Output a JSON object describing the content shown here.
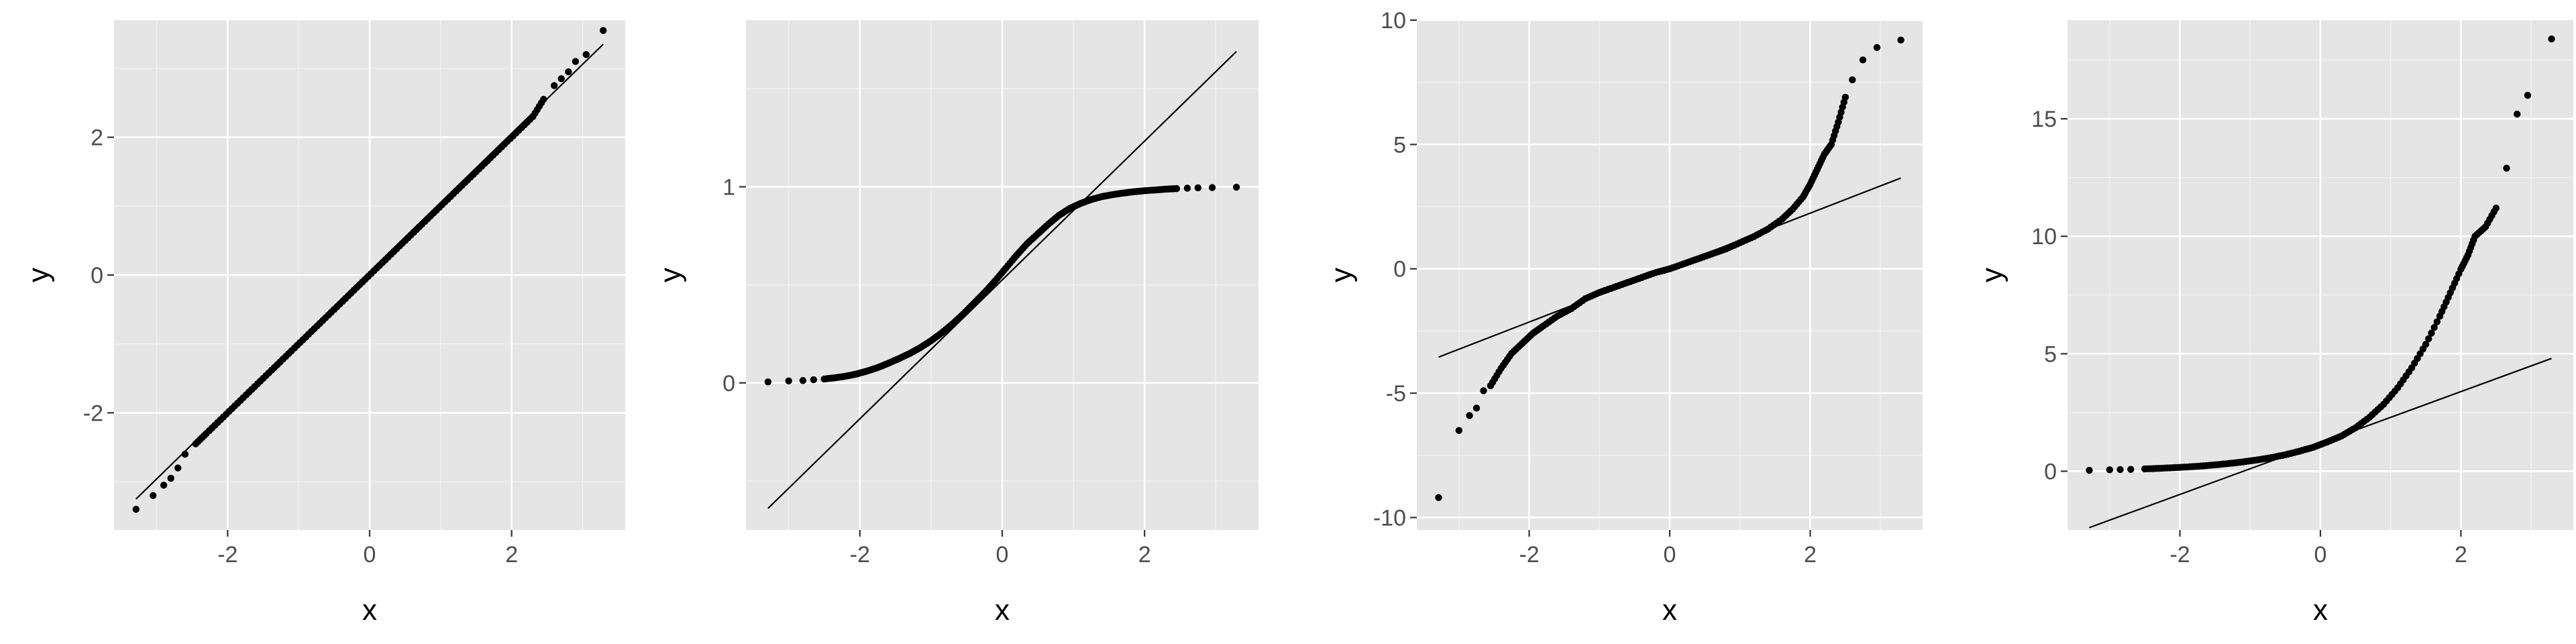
{
  "chart_data": [
    {
      "type": "scatter",
      "xlabel": "x",
      "ylabel": "y",
      "xlim": [
        -3.6,
        3.6
      ],
      "ylim": [
        -3.7,
        3.7
      ],
      "x_ticks": [
        -2,
        0,
        2
      ],
      "y_ticks": [
        -2,
        0,
        2
      ],
      "x_tick_labels": [
        "-2",
        "0",
        "2"
      ],
      "y_tick_labels": [
        "-2",
        "0",
        "2"
      ],
      "grid": true,
      "reference_line": {
        "x": [
          -3.29,
          3.29
        ],
        "y": [
          -3.25,
          3.35
        ]
      },
      "series": [
        {
          "x": [
            -3.29,
            -3.05,
            -2.9,
            -2.8,
            -2.7,
            -2.6,
            -2.45,
            -2.3,
            -2.1,
            -1.9,
            -1.7,
            -1.5,
            -1.3,
            -1.1,
            -0.9,
            -0.7,
            -0.5,
            -0.3,
            -0.1,
            0.1,
            0.3,
            0.5,
            0.7,
            0.9,
            1.1,
            1.3,
            1.5,
            1.7,
            1.9,
            2.1,
            2.3,
            2.45,
            2.6,
            2.7,
            2.8,
            2.9,
            3.05,
            3.29
          ],
          "y": [
            -3.4,
            -3.2,
            -3.05,
            -2.95,
            -2.8,
            -2.6,
            -2.45,
            -2.3,
            -2.1,
            -1.9,
            -1.7,
            -1.5,
            -1.3,
            -1.1,
            -0.9,
            -0.7,
            -0.5,
            -0.3,
            -0.1,
            0.1,
            0.3,
            0.5,
            0.7,
            0.9,
            1.1,
            1.3,
            1.5,
            1.7,
            1.9,
            2.1,
            2.3,
            2.55,
            2.75,
            2.85,
            2.95,
            3.1,
            3.2,
            3.55
          ]
        }
      ]
    },
    {
      "type": "scatter",
      "xlabel": "x",
      "ylabel": "y",
      "xlim": [
        -3.6,
        3.6
      ],
      "ylim": [
        -0.75,
        1.85
      ],
      "x_ticks": [
        -2,
        0,
        2
      ],
      "y_ticks": [
        0,
        1
      ],
      "x_tick_labels": [
        "-2",
        "0",
        "2"
      ],
      "y_tick_labels": [
        "0",
        "1"
      ],
      "grid": true,
      "reference_line": {
        "x": [
          -3.29,
          3.29
        ],
        "y": [
          -0.64,
          1.69
        ]
      },
      "series": [
        {
          "x": [
            -3.29,
            -3.0,
            -2.8,
            -2.65,
            -2.5,
            -2.35,
            -2.2,
            -2.05,
            -1.9,
            -1.75,
            -1.6,
            -1.45,
            -1.3,
            -1.15,
            -1.0,
            -0.85,
            -0.7,
            -0.55,
            -0.4,
            -0.25,
            -0.1,
            0.05,
            0.2,
            0.35,
            0.5,
            0.65,
            0.8,
            0.95,
            1.1,
            1.25,
            1.4,
            1.55,
            1.7,
            1.85,
            2.0,
            2.15,
            2.3,
            2.45,
            2.6,
            2.75,
            2.95,
            3.29
          ],
          "y": [
            0.005,
            0.01,
            0.012,
            0.016,
            0.02,
            0.026,
            0.034,
            0.045,
            0.06,
            0.078,
            0.1,
            0.124,
            0.15,
            0.18,
            0.215,
            0.255,
            0.3,
            0.35,
            0.405,
            0.46,
            0.52,
            0.585,
            0.65,
            0.71,
            0.76,
            0.81,
            0.855,
            0.89,
            0.915,
            0.935,
            0.95,
            0.96,
            0.968,
            0.975,
            0.98,
            0.984,
            0.988,
            0.991,
            0.993,
            0.995,
            0.996,
            0.998
          ]
        }
      ]
    },
    {
      "type": "scatter",
      "xlabel": "x",
      "ylabel": "y",
      "xlim": [
        -3.6,
        3.6
      ],
      "ylim": [
        -10.5,
        10.0
      ],
      "x_ticks": [
        -2,
        0,
        2
      ],
      "y_ticks": [
        -10,
        -5,
        0,
        5,
        10
      ],
      "x_tick_labels": [
        "-2",
        "0",
        "2"
      ],
      "y_tick_labels": [
        "-10",
        "-5",
        "0",
        "5",
        "10"
      ],
      "grid": true,
      "reference_line": {
        "x": [
          -3.29,
          3.29
        ],
        "y": [
          -3.55,
          3.65
        ]
      },
      "series": [
        {
          "x": [
            -3.29,
            -3.0,
            -2.85,
            -2.75,
            -2.65,
            -2.55,
            -2.4,
            -2.25,
            -2.1,
            -1.95,
            -1.8,
            -1.6,
            -1.4,
            -1.2,
            -1.0,
            -0.8,
            -0.6,
            -0.4,
            -0.2,
            0.0,
            0.2,
            0.4,
            0.6,
            0.8,
            1.0,
            1.2,
            1.4,
            1.6,
            1.75,
            1.9,
            2.0,
            2.1,
            2.2,
            2.3,
            2.4,
            2.5,
            2.6,
            2.75,
            2.95,
            3.29
          ],
          "y": [
            -9.2,
            -6.5,
            -5.9,
            -5.6,
            -4.9,
            -4.7,
            -4.0,
            -3.4,
            -3.0,
            -2.6,
            -2.3,
            -1.9,
            -1.6,
            -1.2,
            -0.95,
            -0.75,
            -0.55,
            -0.35,
            -0.15,
            0.0,
            0.2,
            0.4,
            0.6,
            0.8,
            1.05,
            1.3,
            1.6,
            2.0,
            2.4,
            2.9,
            3.4,
            4.0,
            4.6,
            5.0,
            5.9,
            6.9,
            7.6,
            8.4,
            8.9,
            9.2
          ]
        }
      ]
    },
    {
      "type": "scatter",
      "xlabel": "x",
      "ylabel": "y",
      "xlim": [
        -3.6,
        3.6
      ],
      "ylim": [
        -2.5,
        19.2
      ],
      "x_ticks": [
        -2,
        0,
        2
      ],
      "y_ticks": [
        0,
        5,
        10,
        15
      ],
      "x_tick_labels": [
        "-2",
        "0",
        "2"
      ],
      "y_tick_labels": [
        "0",
        "5",
        "10",
        "15"
      ],
      "grid": true,
      "reference_line": {
        "x": [
          -3.29,
          3.29
        ],
        "y": [
          -2.4,
          4.8
        ]
      },
      "series": [
        {
          "x": [
            -3.29,
            -3.0,
            -2.85,
            -2.7,
            -2.5,
            -2.3,
            -2.1,
            -1.9,
            -1.7,
            -1.5,
            -1.3,
            -1.1,
            -0.9,
            -0.7,
            -0.5,
            -0.3,
            -0.1,
            0.1,
            0.3,
            0.5,
            0.7,
            0.9,
            1.1,
            1.3,
            1.5,
            1.7,
            1.85,
            2.0,
            2.1,
            2.2,
            2.35,
            2.5,
            2.65,
            2.8,
            2.95,
            3.29
          ],
          "y": [
            0.04,
            0.06,
            0.07,
            0.08,
            0.1,
            0.12,
            0.15,
            0.18,
            0.22,
            0.27,
            0.33,
            0.4,
            0.48,
            0.58,
            0.7,
            0.85,
            1.02,
            1.25,
            1.5,
            1.85,
            2.3,
            2.85,
            3.55,
            4.4,
            5.4,
            6.6,
            7.6,
            8.6,
            9.2,
            10.0,
            10.4,
            11.2,
            12.9,
            15.2,
            16.0,
            18.4
          ]
        }
      ]
    }
  ]
}
